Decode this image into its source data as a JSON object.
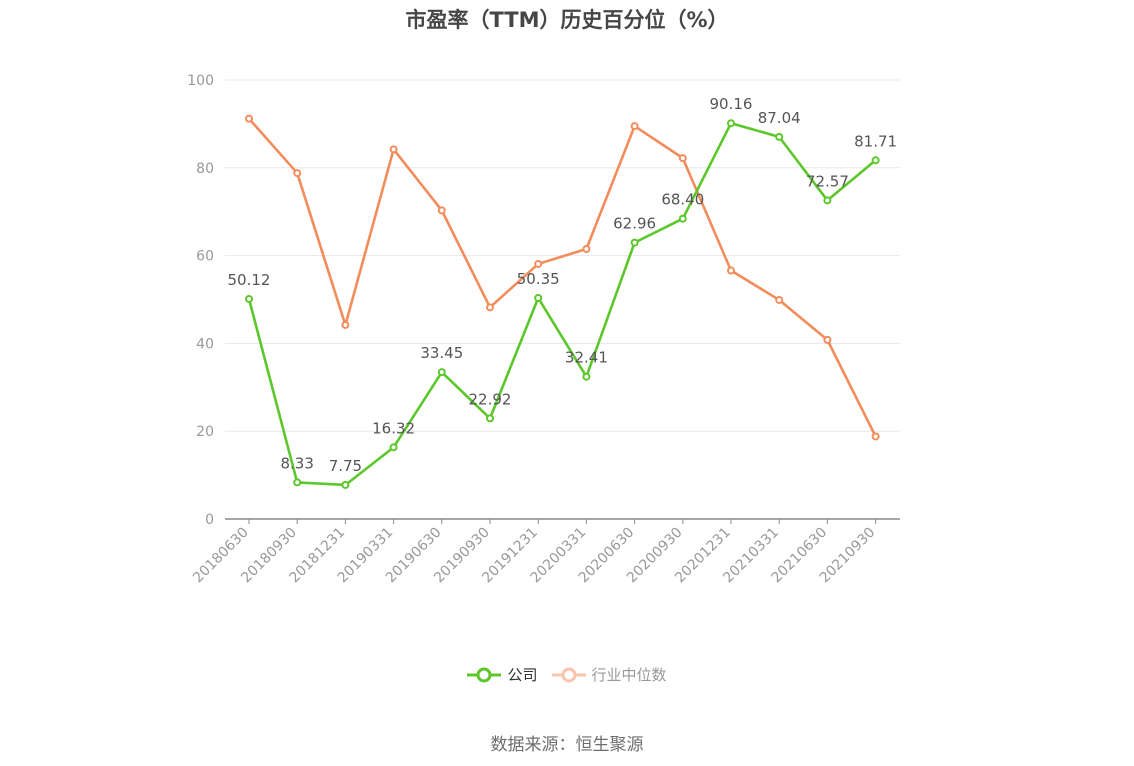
{
  "chart_data": {
    "type": "line",
    "title": "市盈率（TTM）历史百分位（%）",
    "categories": [
      "20180630",
      "20180930",
      "20181231",
      "20190331",
      "20190630",
      "20190930",
      "20191231",
      "20200331",
      "20200630",
      "20200930",
      "20201231",
      "20210331",
      "20210630",
      "20210930"
    ],
    "ylim": [
      0,
      100
    ],
    "yticks": [
      0,
      20,
      40,
      60,
      80,
      100
    ],
    "grid": true,
    "legend_position": "bottom",
    "series": [
      {
        "name": "公司",
        "color": "#5cc72a",
        "values": [
          50.12,
          8.33,
          7.75,
          16.32,
          33.45,
          22.92,
          50.35,
          32.41,
          62.96,
          68.4,
          90.16,
          87.04,
          72.57,
          81.71
        ],
        "labels": [
          "50.12",
          "8.33",
          "7.75",
          "16.32",
          "33.45",
          "22.92",
          "50.35",
          "32.41",
          "62.96",
          "68.40",
          "90.16",
          "87.04",
          "72.57",
          "81.71"
        ]
      },
      {
        "name": "行业中位数",
        "color": "#f28c5b",
        "values": [
          91.2,
          78.8,
          44.2,
          84.2,
          70.3,
          48.2,
          58.1,
          61.5,
          89.5,
          82.2,
          56.6,
          49.9,
          40.8,
          18.8
        ]
      }
    ]
  },
  "legend": {
    "company_label": "公司",
    "industry_label": "行业中位数"
  },
  "source_text": "数据来源：恒生聚源"
}
